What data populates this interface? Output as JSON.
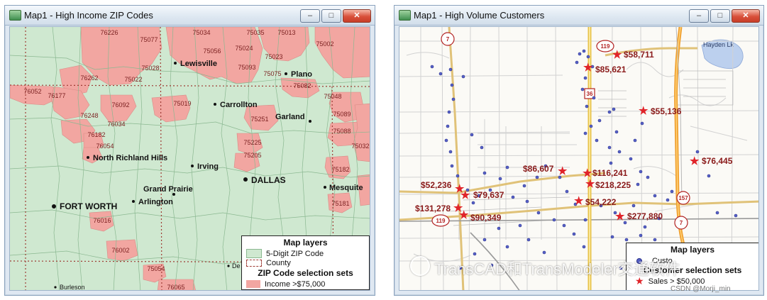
{
  "window1": {
    "title": "Map1 - High Income ZIP Codes",
    "zips": [
      "76226",
      "75077",
      "75034",
      "75035",
      "75013",
      "75056",
      "75024",
      "75002",
      "75028",
      "75093",
      "75023",
      "76262",
      "75022",
      "75075",
      "76052",
      "76177",
      "75082",
      "76092",
      "75019",
      "75048",
      "76248",
      "75089",
      "76034",
      "75251",
      "76182",
      "75088",
      "76054",
      "75032",
      "75225",
      "75205",
      "75182",
      "76016",
      "75181",
      "76002",
      "75054",
      "76065"
    ],
    "cities": [
      "Lewisville",
      "Plano",
      "Carrollton",
      "Garland",
      "North Richland Hills",
      "Irving",
      "Grand Prairie",
      "DALLAS",
      "Arlington",
      "Mesquite",
      "FORT WORTH",
      "Burleson",
      "De"
    ],
    "legend": {
      "title": "Map layers",
      "zip_layer": "5-Digit ZIP Code",
      "county_layer": "County",
      "sets_title": "ZIP Code selection sets",
      "income": "Income >$75,000"
    }
  },
  "window2": {
    "title": "Map1 - High Volume Customers",
    "place": "Hayden Lk",
    "shields": [
      "7",
      "119",
      "36",
      "157",
      "119",
      "7"
    ],
    "sales": [
      "$58,711",
      "$85,621",
      "$55,136",
      "$76,445",
      "$86,607",
      "$116,241",
      "$218,225",
      "$52,236",
      "$79,637",
      "$54,222",
      "$131,278",
      "$90,349",
      "$277,880"
    ],
    "legend": {
      "title": "Map layers",
      "customers": "Custo",
      "sets_title": "Customer selection sets",
      "sales": "Sales > $50,000"
    }
  },
  "watermark": {
    "text": "TransCAD和TransModeler交通软件",
    "credit": "CSDN @Morji_min"
  },
  "colors": {
    "zip_fill": "#cfe8d0",
    "income_fill": "#f2a6a1",
    "sales_star": "#e0242a",
    "customer_dot": "#3b49b5",
    "sales_label": "#8a1a1a",
    "highway": "#f3a12c",
    "road_major": "#e8d08a"
  },
  "icons": {
    "app": "map-app-icon",
    "minimize": "minimize-icon",
    "maximize": "maximize-icon",
    "close": "close-icon",
    "star": "star-icon"
  }
}
